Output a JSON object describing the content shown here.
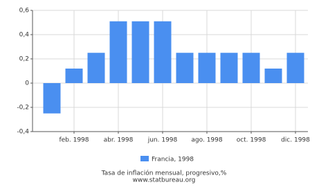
{
  "chart_data": {
    "type": "bar",
    "categories": [
      null,
      "feb. 1998",
      null,
      "abr. 1998",
      null,
      "jun. 1998",
      null,
      "ago. 1998",
      null,
      "oct. 1998",
      null,
      "dic. 1998"
    ],
    "series": [
      {
        "name": "Francia, 1998",
        "color": "#4a8ff0",
        "values": [
          -0.25,
          0.12,
          0.25,
          0.51,
          0.51,
          0.51,
          0.25,
          0.25,
          0.25,
          0.25,
          0.12,
          0.25
        ]
      }
    ],
    "ylim": [
      -0.4,
      0.6
    ],
    "yticks": [
      {
        "value": -0.4,
        "label": "-0,4"
      },
      {
        "value": -0.2,
        "label": "-0,2"
      },
      0,
      {
        "value": 0.2,
        "label": "0,2"
      },
      {
        "value": 0.4,
        "label": "0,4"
      },
      {
        "value": 0.6,
        "label": "0,6"
      }
    ],
    "grid": true,
    "x_label": "Tasa de inflación mensual, progresivo,%",
    "source": "www.statbureau.org"
  }
}
